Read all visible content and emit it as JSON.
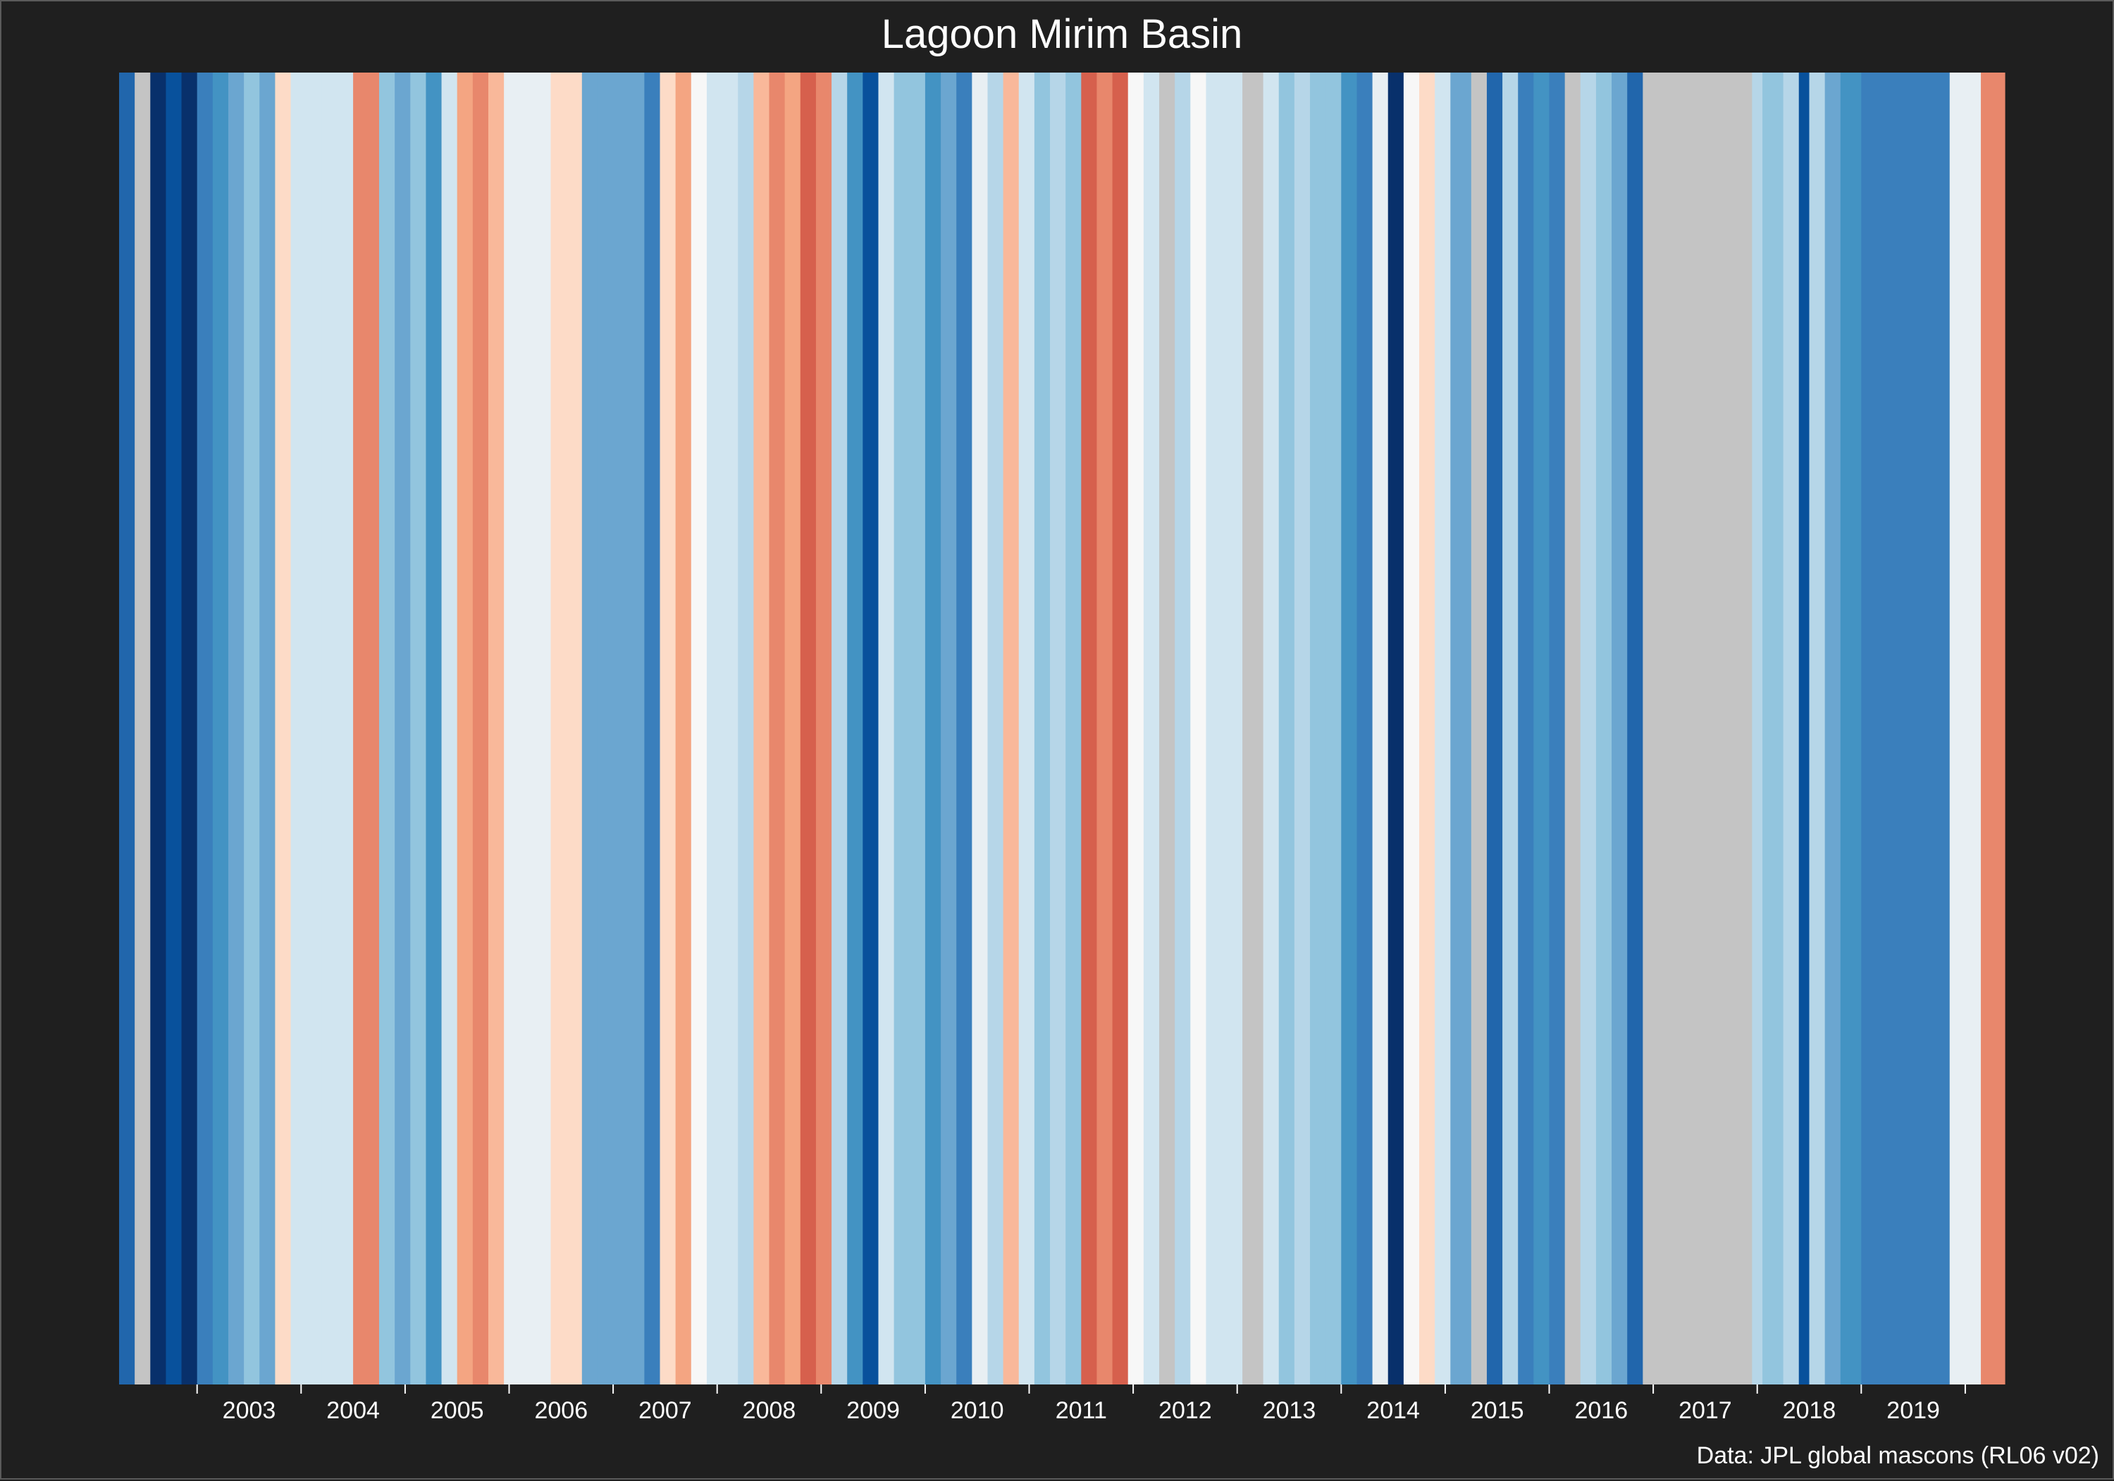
{
  "chart_data": {
    "type": "heatmap",
    "title": "Lagoon Mirim Basin",
    "caption": "Data: JPL global mascons (RL06 v02)",
    "x_axis": {
      "tick_labels": [
        "2003",
        "2004",
        "2005",
        "2006",
        "2007",
        "2008",
        "2009",
        "2010",
        "2011",
        "2012",
        "2013",
        "2014",
        "2015",
        "2016",
        "2017",
        "2018",
        "2019"
      ],
      "range_years": [
        2002.25,
        2020.38
      ]
    },
    "colors": {
      "background": "#1f1f1f",
      "missing": "#c4c4c4",
      "scale": [
        "#08306b",
        "#08519c",
        "#2166ac",
        "#3a7fbc",
        "#4393c3",
        "#6ba6d0",
        "#92c5de",
        "#b6d6e8",
        "#d1e5f0",
        "#e8eff3",
        "#f7f7f7",
        "#fddbc7",
        "#f9b89a",
        "#f4a582",
        "#e8876c",
        "#d6604d",
        "#c0392b",
        "#b2182b"
      ]
    },
    "stripes": [
      {
        "start": 2002.25,
        "end": 2002.4,
        "value": -0.8
      },
      {
        "start": 2002.4,
        "end": 2002.55,
        "value": null
      },
      {
        "start": 2002.55,
        "end": 2002.7,
        "value": -1.0
      },
      {
        "start": 2002.7,
        "end": 2002.85,
        "value": -0.9
      },
      {
        "start": 2002.85,
        "end": 2003.0,
        "value": -0.95
      },
      {
        "start": 2003.0,
        "end": 2003.15,
        "value": -0.65
      },
      {
        "start": 2003.15,
        "end": 2003.3,
        "value": -0.55
      },
      {
        "start": 2003.3,
        "end": 2003.45,
        "value": -0.45
      },
      {
        "start": 2003.45,
        "end": 2003.6,
        "value": -0.35
      },
      {
        "start": 2003.6,
        "end": 2003.75,
        "value": -0.4
      },
      {
        "start": 2003.75,
        "end": 2003.9,
        "value": 0.25
      },
      {
        "start": 2003.9,
        "end": 2004.05,
        "value": -0.05
      },
      {
        "start": 2004.05,
        "end": 2004.2,
        "value": -0.08
      },
      {
        "start": 2004.2,
        "end": 2004.35,
        "value": -0.02
      },
      {
        "start": 2004.35,
        "end": 2004.5,
        "value": -0.1
      },
      {
        "start": 2004.5,
        "end": 2004.75,
        "value": 0.7
      },
      {
        "start": 2004.75,
        "end": 2004.9,
        "value": -0.25
      },
      {
        "start": 2004.9,
        "end": 2005.05,
        "value": -0.4
      },
      {
        "start": 2005.05,
        "end": 2005.2,
        "value": -0.3
      },
      {
        "start": 2005.2,
        "end": 2005.35,
        "value": -0.5
      },
      {
        "start": 2005.35,
        "end": 2005.5,
        "value": -0.1
      },
      {
        "start": 2005.5,
        "end": 2005.65,
        "value": 0.5
      },
      {
        "start": 2005.65,
        "end": 2005.8,
        "value": 0.6
      },
      {
        "start": 2005.8,
        "end": 2005.95,
        "value": 0.4
      },
      {
        "start": 2005.95,
        "end": 2006.1,
        "value": 0.05
      },
      {
        "start": 2006.1,
        "end": 2006.25,
        "value": 0.08
      },
      {
        "start": 2006.25,
        "end": 2006.4,
        "value": 0.03
      },
      {
        "start": 2006.4,
        "end": 2006.55,
        "value": 0.25
      },
      {
        "start": 2006.55,
        "end": 2006.7,
        "value": 0.3
      },
      {
        "start": 2006.7,
        "end": 2006.85,
        "value": -0.45
      },
      {
        "start": 2006.85,
        "end": 2007.0,
        "value": -0.4
      },
      {
        "start": 2007.0,
        "end": 2007.15,
        "value": -0.38
      },
      {
        "start": 2007.15,
        "end": 2007.3,
        "value": -0.42
      },
      {
        "start": 2007.3,
        "end": 2007.45,
        "value": -0.6
      },
      {
        "start": 2007.45,
        "end": 2007.6,
        "value": 0.25
      },
      {
        "start": 2007.6,
        "end": 2007.75,
        "value": 0.5
      },
      {
        "start": 2007.75,
        "end": 2007.9,
        "value": 0.15
      },
      {
        "start": 2007.9,
        "end": 2008.05,
        "value": -0.05
      },
      {
        "start": 2008.05,
        "end": 2008.2,
        "value": -0.02
      },
      {
        "start": 2008.2,
        "end": 2008.35,
        "value": -0.15
      },
      {
        "start": 2008.35,
        "end": 2008.5,
        "value": 0.45
      },
      {
        "start": 2008.5,
        "end": 2008.65,
        "value": 0.6
      },
      {
        "start": 2008.65,
        "end": 2008.8,
        "value": 0.55
      },
      {
        "start": 2008.8,
        "end": 2008.95,
        "value": 0.75
      },
      {
        "start": 2008.95,
        "end": 2009.1,
        "value": 0.65
      },
      {
        "start": 2009.1,
        "end": 2009.25,
        "value": -0.2
      },
      {
        "start": 2009.25,
        "end": 2009.4,
        "value": -0.55
      },
      {
        "start": 2009.4,
        "end": 2009.55,
        "value": -0.9
      },
      {
        "start": 2009.55,
        "end": 2009.7,
        "value": -0.1
      },
      {
        "start": 2009.7,
        "end": 2009.85,
        "value": -0.3
      },
      {
        "start": 2009.85,
        "end": 2010.0,
        "value": -0.35
      },
      {
        "start": 2010.0,
        "end": 2010.15,
        "value": -0.5
      },
      {
        "start": 2010.15,
        "end": 2010.3,
        "value": -0.4
      },
      {
        "start": 2010.3,
        "end": 2010.45,
        "value": -0.6
      },
      {
        "start": 2010.45,
        "end": 2010.6,
        "value": 0.05
      },
      {
        "start": 2010.6,
        "end": 2010.75,
        "value": -0.15
      },
      {
        "start": 2010.75,
        "end": 2010.9,
        "value": 0.4
      },
      {
        "start": 2010.9,
        "end": 2011.05,
        "value": -0.1
      },
      {
        "start": 2011.05,
        "end": 2011.2,
        "value": -0.25
      },
      {
        "start": 2011.2,
        "end": 2011.35,
        "value": -0.22
      },
      {
        "start": 2011.35,
        "end": 2011.5,
        "value": -0.28
      },
      {
        "start": 2011.5,
        "end": 2011.65,
        "value": 0.8
      },
      {
        "start": 2011.65,
        "end": 2011.8,
        "value": 0.6
      },
      {
        "start": 2011.8,
        "end": 2011.95,
        "value": 0.75
      },
      {
        "start": 2011.95,
        "end": 2012.1,
        "value": 0.15
      },
      {
        "start": 2012.1,
        "end": 2012.25,
        "value": -0.1
      },
      {
        "start": 2012.25,
        "end": 2012.4,
        "value": null
      },
      {
        "start": 2012.4,
        "end": 2012.55,
        "value": -0.2
      },
      {
        "start": 2012.55,
        "end": 2012.7,
        "value": 0.2
      },
      {
        "start": 2012.7,
        "end": 2012.85,
        "value": -0.05
      },
      {
        "start": 2012.85,
        "end": 2013.05,
        "value": -0.03
      },
      {
        "start": 2013.05,
        "end": 2013.25,
        "value": null
      },
      {
        "start": 2013.25,
        "end": 2013.4,
        "value": -0.05
      },
      {
        "start": 2013.4,
        "end": 2013.55,
        "value": -0.3
      },
      {
        "start": 2013.55,
        "end": 2013.7,
        "value": -0.15
      },
      {
        "start": 2013.7,
        "end": 2013.85,
        "value": -0.25
      },
      {
        "start": 2013.85,
        "end": 2014.0,
        "value": -0.25
      },
      {
        "start": 2014.0,
        "end": 2014.15,
        "value": -0.55
      },
      {
        "start": 2014.15,
        "end": 2014.3,
        "value": -0.6
      },
      {
        "start": 2014.3,
        "end": 2014.45,
        "value": 0.1
      },
      {
        "start": 2014.45,
        "end": 2014.6,
        "value": -0.95
      },
      {
        "start": 2014.6,
        "end": 2014.75,
        "value": 0.2
      },
      {
        "start": 2014.75,
        "end": 2014.9,
        "value": 0.35
      },
      {
        "start": 2014.9,
        "end": 2015.05,
        "value": -0.1
      },
      {
        "start": 2015.05,
        "end": 2015.25,
        "value": -0.45
      },
      {
        "start": 2015.25,
        "end": 2015.4,
        "value": null
      },
      {
        "start": 2015.4,
        "end": 2015.55,
        "value": -0.75
      },
      {
        "start": 2015.55,
        "end": 2015.7,
        "value": -0.2
      },
      {
        "start": 2015.7,
        "end": 2015.85,
        "value": -0.65
      },
      {
        "start": 2015.85,
        "end": 2016.0,
        "value": -0.58
      },
      {
        "start": 2016.0,
        "end": 2016.15,
        "value": -0.62
      },
      {
        "start": 2016.15,
        "end": 2016.3,
        "value": null
      },
      {
        "start": 2016.3,
        "end": 2016.45,
        "value": -0.2
      },
      {
        "start": 2016.45,
        "end": 2016.6,
        "value": -0.3
      },
      {
        "start": 2016.6,
        "end": 2016.75,
        "value": -0.45
      },
      {
        "start": 2016.75,
        "end": 2016.9,
        "value": -0.8
      },
      {
        "start": 2016.9,
        "end": 2017.95,
        "value": null
      },
      {
        "start": 2017.95,
        "end": 2018.05,
        "value": -0.2
      },
      {
        "start": 2018.05,
        "end": 2018.25,
        "value": -0.3
      },
      {
        "start": 2018.25,
        "end": 2018.4,
        "value": -0.15
      },
      {
        "start": 2018.4,
        "end": 2018.5,
        "value": -0.9
      },
      {
        "start": 2018.5,
        "end": 2018.65,
        "value": -0.15
      },
      {
        "start": 2018.65,
        "end": 2018.8,
        "value": -0.4
      },
      {
        "start": 2018.8,
        "end": 2019.0,
        "value": -0.55
      },
      {
        "start": 2019.0,
        "end": 2019.85,
        "value": -0.6
      },
      {
        "start": 2019.85,
        "end": 2020.0,
        "value": 0.05
      },
      {
        "start": 2020.0,
        "end": 2020.15,
        "value": 0.08
      },
      {
        "start": 2020.15,
        "end": 2020.38,
        "value": 0.7
      }
    ]
  }
}
